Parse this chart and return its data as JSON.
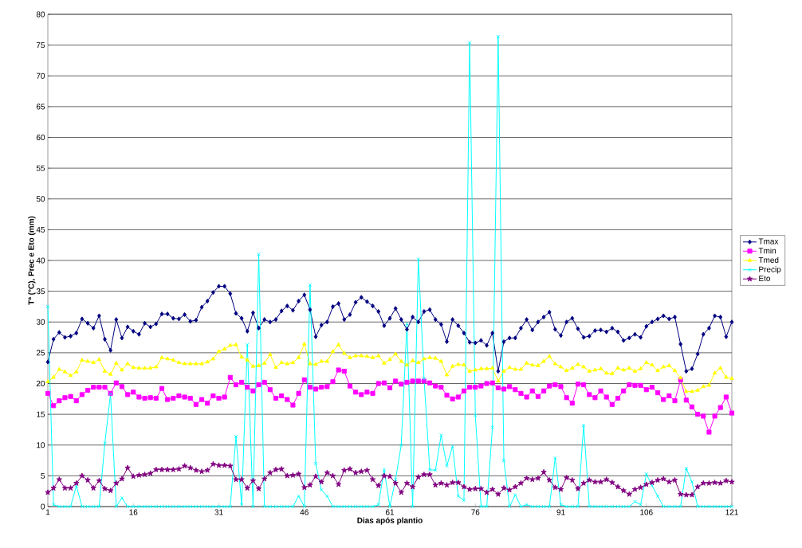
{
  "chart_data": {
    "type": "line",
    "xlabel": "Dias após plantio",
    "ylabel": "Tª (°C), Prec e Eto (mm)",
    "x": [
      1,
      2,
      3,
      4,
      5,
      6,
      7,
      8,
      9,
      10,
      11,
      12,
      13,
      14,
      15,
      16,
      17,
      18,
      19,
      20,
      21,
      22,
      23,
      24,
      25,
      26,
      27,
      28,
      29,
      30,
      31,
      32,
      33,
      34,
      35,
      36,
      37,
      38,
      39,
      40,
      41,
      42,
      43,
      44,
      45,
      46,
      47,
      48,
      49,
      50,
      51,
      52,
      53,
      54,
      55,
      56,
      57,
      58,
      59,
      60,
      61,
      62,
      63,
      64,
      65,
      66,
      67,
      68,
      69,
      70,
      71,
      72,
      73,
      74,
      75,
      76,
      77,
      78,
      79,
      80,
      81,
      82,
      83,
      84,
      85,
      86,
      87,
      88,
      89,
      90,
      91,
      92,
      93,
      94,
      95,
      96,
      97,
      98,
      99,
      100,
      101,
      102,
      103,
      104,
      105,
      106,
      107,
      108,
      109,
      110,
      111,
      112,
      113,
      114,
      115,
      116,
      117,
      118,
      119,
      120,
      121
    ],
    "xlim": [
      1,
      121
    ],
    "xticks": [
      1,
      16,
      31,
      46,
      61,
      76,
      91,
      106,
      121
    ],
    "ylim": [
      0,
      80
    ],
    "yticks": [
      0,
      5,
      10,
      15,
      20,
      25,
      30,
      35,
      40,
      45,
      50,
      55,
      60,
      65,
      70,
      75,
      80
    ],
    "grid": "y",
    "legend": "right",
    "line_style": "solid",
    "series": [
      {
        "name": "Tmax",
        "color": "#000080",
        "marker": "diamond",
        "values": [
          23.5,
          27.2,
          28.3,
          27.5,
          27.7,
          28.2,
          30.5,
          29.8,
          29,
          31,
          27.2,
          25.4,
          30.4,
          27.4,
          29.2,
          28.5,
          28,
          29.8,
          29.2,
          29.7,
          31.3,
          31.3,
          30.6,
          30.5,
          31.2,
          30.1,
          30.3,
          32.4,
          33.4,
          34.8,
          35.8,
          35.8,
          34.6,
          31.4,
          30.6,
          28.5,
          31.5,
          29,
          30.4,
          30,
          30.4,
          31.8,
          32.6,
          31.9,
          33.4,
          34.4,
          32,
          27.6,
          29.5,
          30,
          32.5,
          33,
          30.4,
          31.2,
          33.2,
          34,
          33.3,
          32.6,
          31.7,
          29.4,
          30.6,
          32.2,
          30.4,
          28.8,
          30.8,
          30,
          31.7,
          32,
          30.4,
          29.6,
          26.8,
          30.4,
          29.4,
          28.2,
          26.7,
          26.6,
          27,
          26.2,
          28.2,
          22,
          26.8,
          27.4,
          27.4,
          29,
          30.4,
          28.7,
          30,
          30.8,
          31.6,
          28.8,
          27.8,
          30,
          30.6,
          28.9,
          27.5,
          27.7,
          28.6,
          28.7,
          28.4,
          29,
          28.4,
          27,
          27.4,
          28,
          27.5,
          29.3,
          30,
          30.5,
          31,
          30.5,
          30.8,
          26.4,
          22,
          22.4,
          24.8,
          28,
          29,
          31,
          30.8,
          27.6,
          30
        ]
      },
      {
        "name": "Tmin",
        "color": "#ff00ff",
        "marker": "square",
        "values": [
          18.4,
          16.4,
          17.2,
          17.7,
          17.9,
          17.2,
          18.2,
          18.9,
          19.4,
          19.4,
          19.4,
          18.4,
          20.1,
          19.5,
          18.2,
          18.6,
          17.8,
          17.6,
          17.7,
          17.6,
          19.2,
          17.4,
          17.6,
          18,
          17.8,
          17.6,
          16.6,
          17.4,
          16.8,
          18,
          17.6,
          17.8,
          21,
          19.8,
          20.2,
          19.4,
          18.8,
          19.8,
          20.2,
          19,
          17.6,
          18,
          17.4,
          16.5,
          18.4,
          20.6,
          19.4,
          19.1,
          19.4,
          19.5,
          20.3,
          22.2,
          22,
          19.6,
          18.6,
          18.2,
          18.6,
          18.4,
          20,
          20.1,
          19.3,
          20.4,
          19.9,
          20.2,
          20.4,
          20.4,
          20.4,
          20.1,
          19.6,
          19.4,
          18.1,
          17.5,
          17.8,
          18.8,
          19.4,
          19.4,
          19.6,
          20,
          20.1,
          19.3,
          19.1,
          19.5,
          19,
          18.4,
          17.8,
          18.8,
          17.9,
          18.8,
          19.6,
          19.8,
          19.5,
          17.7,
          16.8,
          19.9,
          19.8,
          18.2,
          17.7,
          18.8,
          17.8,
          16.6,
          17.6,
          18.8,
          19.8,
          19.7,
          19.7,
          19,
          19.4,
          18.5,
          17.4,
          18,
          17.2,
          20.6,
          17.3,
          16.2,
          15,
          14.7,
          12.1,
          14.7,
          16.1,
          17.8,
          15.2
        ]
      },
      {
        "name": "Tmed",
        "color": "#ffff00",
        "marker": "triangle",
        "values": [
          20.3,
          21,
          22.3,
          21.9,
          21.3,
          21.9,
          23.8,
          23.6,
          23.4,
          23.9,
          22,
          21.5,
          23.3,
          22.2,
          23.2,
          22.6,
          22.5,
          22.5,
          22.5,
          22.7,
          24.2,
          24,
          23.8,
          23.4,
          23.2,
          23.2,
          23.2,
          23.2,
          23.5,
          24,
          25.2,
          25.6,
          26.2,
          26.3,
          24.3,
          23.8,
          22.8,
          22.9,
          23.3,
          24.7,
          22.6,
          23.4,
          23.2,
          23.4,
          24.2,
          26.4,
          23.2,
          23.1,
          23.6,
          23.6,
          25.2,
          26.3,
          24.9,
          24.2,
          24.5,
          24.5,
          24.4,
          24.2,
          24.5,
          23.3,
          23.9,
          24.8,
          23.6,
          23,
          23.7,
          23.4,
          24,
          24.2,
          24.1,
          23.6,
          21.4,
          22.8,
          23.1,
          23,
          22,
          22.2,
          22.4,
          22.4,
          22.5,
          20.4,
          22,
          22.6,
          22.3,
          22.3,
          23.3,
          23,
          22.9,
          23.6,
          24.4,
          23.2,
          22.7,
          22.1,
          22.5,
          23.1,
          22.7,
          22,
          22.2,
          22.4,
          21.7,
          21.6,
          22.5,
          22.2,
          22.5,
          22,
          22.4,
          23.4,
          23,
          22.1,
          22.7,
          22.9,
          22.1,
          20.9,
          18.7,
          18.7,
          18.9,
          19.5,
          19.7,
          21.7,
          22.5,
          21,
          20.8
        ]
      },
      {
        "name": "Precip",
        "color": "#00ffff",
        "marker": "cross",
        "values": [
          32.5,
          0.3,
          0,
          0,
          0,
          3.4,
          0,
          0,
          0,
          0,
          10.3,
          18.3,
          0,
          1.4,
          0,
          0,
          0,
          0,
          0,
          0,
          0,
          0,
          0,
          0,
          0,
          0,
          0,
          0,
          0,
          0,
          0,
          0,
          0,
          11.4,
          0.3,
          26.3,
          0,
          41,
          0,
          0,
          0,
          0,
          0,
          0,
          1.7,
          0,
          36,
          7,
          2.7,
          1.7,
          0,
          0,
          0,
          0,
          0,
          0,
          0,
          0,
          0.3,
          6,
          0,
          4.4,
          10,
          29.7,
          0,
          40.2,
          20.8,
          6,
          5.9,
          11.6,
          6.6,
          9.8,
          1.7,
          1,
          75.4,
          14.8,
          0,
          0,
          12.9,
          76.4,
          7.5,
          0,
          1.9,
          0,
          0.3,
          0,
          0,
          0,
          0,
          7.9,
          0.3,
          0,
          0,
          0,
          13.2,
          0,
          0,
          0,
          0,
          0,
          0,
          0,
          0,
          0.8,
          0.3,
          5.3,
          3.4,
          1.7,
          0,
          0,
          0,
          0,
          6.2,
          4,
          0,
          0,
          0,
          0,
          0,
          0,
          0
        ]
      },
      {
        "name": "Eto",
        "color": "#800080",
        "marker": "star",
        "values": [
          2.3,
          3.0,
          4.4,
          3.0,
          3.0,
          3.8,
          5.0,
          4.3,
          3.0,
          4.2,
          2.9,
          2.6,
          3.8,
          4.5,
          6.3,
          4.9,
          5.1,
          5.2,
          5.4,
          6.0,
          6.0,
          6.0,
          6.0,
          6.1,
          6.6,
          6.3,
          5.9,
          5.7,
          5.9,
          6.9,
          6.7,
          6.7,
          6.6,
          4.4,
          4.4,
          3.0,
          4.2,
          2.9,
          4.5,
          5.5,
          6.0,
          6.1,
          5.0,
          5.1,
          5.3,
          3.1,
          3.5,
          4.9,
          4.0,
          5.5,
          5.0,
          3.6,
          5.9,
          6.1,
          5.5,
          5.7,
          5.9,
          4.4,
          3.4,
          5.0,
          4.9,
          3.8,
          2.3,
          3.8,
          3.2,
          4.8,
          5.2,
          5.2,
          3.5,
          3.8,
          3.5,
          3.9,
          3.9,
          3.2,
          2.8,
          2.9,
          2.9,
          2.3,
          2.8,
          2.0,
          3.0,
          2.7,
          3.2,
          3.8,
          4.6,
          4.4,
          4.6,
          5.6,
          4.3,
          3.1,
          2.8,
          4.7,
          4.3,
          2.9,
          3.8,
          4.3,
          4.0,
          4.0,
          4.4,
          3.9,
          3.2,
          2.6,
          2.0,
          2.8,
          3.1,
          3.6,
          3.9,
          4.3,
          4.5,
          4.0,
          4.3,
          2.0,
          1.9,
          1.9,
          3.2,
          3.8,
          3.8,
          3.9,
          3.8,
          4.2,
          4.0
        ]
      }
    ]
  }
}
